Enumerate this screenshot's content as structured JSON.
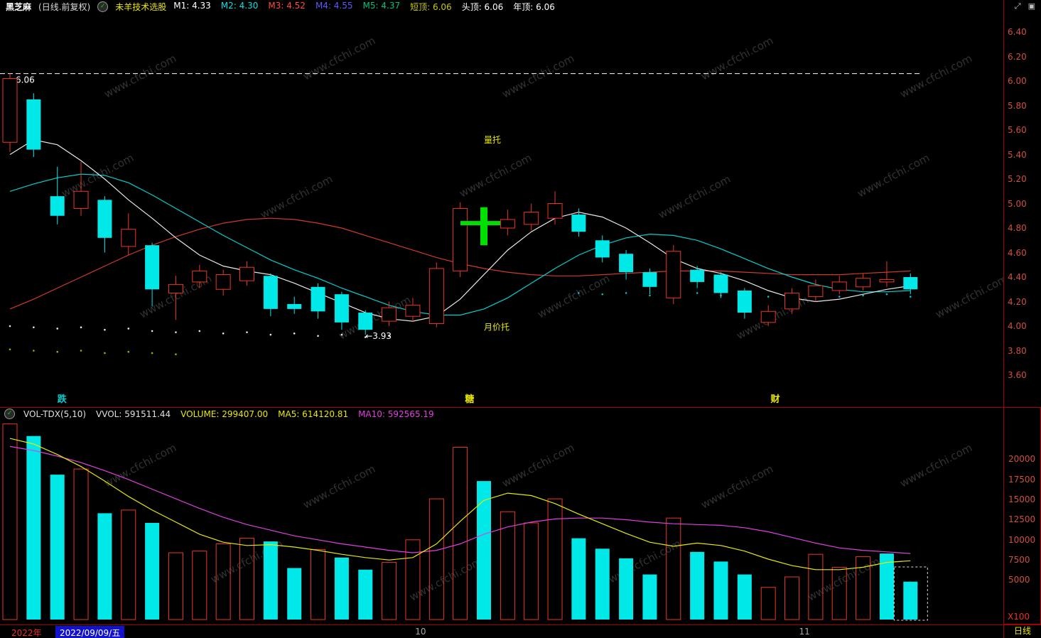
{
  "watermark": "www.cfchi.com",
  "title_bar": {
    "stock_name": "黑芝麻",
    "period_label": "(日线.前复权)",
    "indicator_name": "未羊技术选股",
    "stats": [
      {
        "label": "M1:",
        "value": "4.33",
        "color": "#ffffff"
      },
      {
        "label": "M2:",
        "value": "4.30",
        "color": "#00e0e0"
      },
      {
        "label": "M3:",
        "value": "4.52",
        "color": "#ff4a3a"
      },
      {
        "label": "M4:",
        "value": "4.55",
        "color": "#5a5aff"
      },
      {
        "label": "M5:",
        "value": "4.37",
        "color": "#00c080"
      },
      {
        "label": "短顶:",
        "value": "6.06",
        "color": "#c8c800"
      },
      {
        "label": "头顶:",
        "value": "6.06",
        "color": "#ffffff"
      },
      {
        "label": "年顶:",
        "value": "6.06",
        "color": "#ffffff"
      }
    ]
  },
  "window_icons": {
    "expand": "⤢",
    "restore": "▣"
  },
  "volume_header": {
    "items": [
      {
        "text": "VOL-TDX(5,10)",
        "color": "#e0e0e0"
      },
      {
        "text": "VVOL: 591511.44",
        "color": "#e0e0e0"
      },
      {
        "text": "VOLUME: 299407.00",
        "color": "#e8e800"
      },
      {
        "text": "MA5: 614120.81",
        "color": "#e8e800"
      },
      {
        "text": "MA10: 592565.19",
        "color": "#e040e0"
      }
    ]
  },
  "colors": {
    "up": "#ee3524",
    "down": "#00e8e8",
    "signal": "#00e000",
    "ma_fast": "#e8e8e8",
    "ma_mid": "#00d0d0",
    "ma_slow": "#d03a2a",
    "vol_ma5": "#e8e800",
    "vol_ma10": "#e040e0",
    "axis_label": "#cf5040",
    "border": "#a40000"
  },
  "chart_data": {
    "type": "candlestick+volume",
    "main": {
      "axis_ticks": [
        "6.40",
        "6.20",
        "6.00",
        "5.80",
        "5.60",
        "5.40",
        "5.20",
        "5.00",
        "4.80",
        "4.60",
        "4.40",
        "4.20",
        "4.00",
        "3.80",
        "3.60"
      ],
      "resistance_line": {
        "price": 6.06,
        "label": "6.06"
      },
      "annotations": [
        {
          "text": "量托",
          "x": 20.0,
          "p": 5.52,
          "color": "#e8e800"
        },
        {
          "text": "月价托",
          "x": 20.0,
          "p": 3.99,
          "color": "#e8e800"
        },
        {
          "text": "←3.93",
          "x": 15.0,
          "p": 3.92,
          "color": "#ffffff"
        }
      ],
      "signal_row": [
        {
          "text": "跌",
          "x": 2.0,
          "color": "#00d0d0"
        },
        {
          "text": "糖",
          "x": 19.2,
          "color": "#e8e800"
        },
        {
          "text": "财",
          "x": 32.1,
          "color": "#e8e800"
        }
      ],
      "candles": [
        {
          "o": 5.5,
          "h": 6.06,
          "l": 5.42,
          "c": 6.02,
          "k": "red"
        },
        {
          "o": 5.85,
          "h": 5.9,
          "l": 5.38,
          "c": 5.44,
          "k": "cyan"
        },
        {
          "o": 5.06,
          "h": 5.3,
          "l": 4.83,
          "c": 4.9,
          "k": "cyan"
        },
        {
          "o": 4.96,
          "h": 5.34,
          "l": 4.9,
          "c": 5.1,
          "k": "red"
        },
        {
          "o": 5.03,
          "h": 5.06,
          "l": 4.6,
          "c": 4.72,
          "k": "cyan"
        },
        {
          "o": 4.65,
          "h": 4.92,
          "l": 4.58,
          "c": 4.79,
          "k": "red"
        },
        {
          "o": 4.66,
          "h": 4.68,
          "l": 4.16,
          "c": 4.3,
          "k": "cyan"
        },
        {
          "o": 4.27,
          "h": 4.41,
          "l": 4.05,
          "c": 4.34,
          "k": "red"
        },
        {
          "o": 4.36,
          "h": 4.5,
          "l": 4.31,
          "c": 4.45,
          "k": "red"
        },
        {
          "o": 4.3,
          "h": 4.46,
          "l": 4.25,
          "c": 4.42,
          "k": "red"
        },
        {
          "o": 4.37,
          "h": 4.53,
          "l": 4.33,
          "c": 4.48,
          "k": "red"
        },
        {
          "o": 4.41,
          "h": 4.43,
          "l": 4.08,
          "c": 4.14,
          "k": "cyan"
        },
        {
          "o": 4.18,
          "h": 4.24,
          "l": 4.1,
          "c": 4.14,
          "k": "cyan"
        },
        {
          "o": 4.32,
          "h": 4.35,
          "l": 4.06,
          "c": 4.12,
          "k": "cyan"
        },
        {
          "o": 4.26,
          "h": 4.28,
          "l": 3.97,
          "c": 4.03,
          "k": "cyan"
        },
        {
          "o": 4.11,
          "h": 4.13,
          "l": 3.93,
          "c": 3.97,
          "k": "cyan"
        },
        {
          "o": 4.04,
          "h": 4.2,
          "l": 4.0,
          "c": 4.15,
          "k": "red"
        },
        {
          "o": 4.08,
          "h": 4.23,
          "l": 4.04,
          "c": 4.17,
          "k": "red"
        },
        {
          "o": 4.02,
          "h": 4.52,
          "l": 3.99,
          "c": 4.47,
          "k": "red"
        },
        {
          "o": 4.45,
          "h": 5.01,
          "l": 4.4,
          "c": 4.96,
          "k": "red"
        },
        {
          "o": 4.78,
          "h": 4.97,
          "l": 4.66,
          "c": 4.9,
          "k": "green"
        },
        {
          "o": 4.8,
          "h": 4.95,
          "l": 4.74,
          "c": 4.87,
          "k": "red"
        },
        {
          "o": 4.83,
          "h": 5.0,
          "l": 4.78,
          "c": 4.93,
          "k": "red"
        },
        {
          "o": 4.88,
          "h": 5.1,
          "l": 4.83,
          "c": 5.0,
          "k": "red"
        },
        {
          "o": 4.91,
          "h": 4.96,
          "l": 4.73,
          "c": 4.77,
          "k": "cyan"
        },
        {
          "o": 4.7,
          "h": 4.74,
          "l": 4.52,
          "c": 4.56,
          "k": "cyan"
        },
        {
          "o": 4.59,
          "h": 4.62,
          "l": 4.38,
          "c": 4.44,
          "k": "cyan"
        },
        {
          "o": 4.44,
          "h": 4.47,
          "l": 4.26,
          "c": 4.32,
          "k": "cyan"
        },
        {
          "o": 4.23,
          "h": 4.66,
          "l": 4.18,
          "c": 4.61,
          "k": "red"
        },
        {
          "o": 4.46,
          "h": 4.49,
          "l": 4.31,
          "c": 4.36,
          "k": "cyan"
        },
        {
          "o": 4.42,
          "h": 4.44,
          "l": 4.23,
          "c": 4.27,
          "k": "cyan"
        },
        {
          "o": 4.29,
          "h": 4.31,
          "l": 4.06,
          "c": 4.11,
          "k": "cyan"
        },
        {
          "o": 4.03,
          "h": 4.17,
          "l": 4.0,
          "c": 4.12,
          "k": "red"
        },
        {
          "o": 4.14,
          "h": 4.31,
          "l": 4.1,
          "c": 4.27,
          "k": "red"
        },
        {
          "o": 4.24,
          "h": 4.38,
          "l": 4.2,
          "c": 4.33,
          "k": "red"
        },
        {
          "o": 4.29,
          "h": 4.41,
          "l": 4.26,
          "c": 4.36,
          "k": "red"
        },
        {
          "o": 4.32,
          "h": 4.43,
          "l": 4.29,
          "c": 4.39,
          "k": "red"
        },
        {
          "o": 4.36,
          "h": 4.53,
          "l": 4.32,
          "c": 4.38,
          "k": "red"
        },
        {
          "o": 4.4,
          "h": 4.43,
          "l": 4.26,
          "c": 4.3,
          "k": "cyan"
        }
      ],
      "ma_white": [
        5.4,
        5.52,
        5.48,
        5.35,
        5.2,
        5.03,
        4.88,
        4.72,
        4.58,
        4.49,
        4.45,
        4.42,
        4.35,
        4.27,
        4.19,
        4.11,
        4.06,
        4.04,
        4.08,
        4.22,
        4.42,
        4.62,
        4.77,
        4.88,
        4.93,
        4.89,
        4.8,
        4.68,
        4.55,
        4.47,
        4.43,
        4.37,
        4.29,
        4.23,
        4.2,
        4.22,
        4.26,
        4.3,
        4.33
      ],
      "ma_cyan": [
        5.1,
        5.16,
        5.21,
        5.24,
        5.23,
        5.17,
        5.07,
        4.96,
        4.85,
        4.74,
        4.64,
        4.54,
        4.46,
        4.39,
        4.31,
        4.24,
        4.17,
        4.12,
        4.09,
        4.09,
        4.14,
        4.23,
        4.35,
        4.47,
        4.58,
        4.66,
        4.72,
        4.75,
        4.74,
        4.7,
        4.63,
        4.55,
        4.47,
        4.4,
        4.34,
        4.3,
        4.28,
        4.28,
        4.29
      ],
      "ma_red": [
        4.14,
        4.22,
        4.31,
        4.4,
        4.49,
        4.58,
        4.66,
        4.73,
        4.79,
        4.84,
        4.87,
        4.88,
        4.87,
        4.84,
        4.8,
        4.74,
        4.68,
        4.62,
        4.56,
        4.51,
        4.47,
        4.44,
        4.42,
        4.41,
        4.41,
        4.42,
        4.43,
        4.44,
        4.45,
        4.45,
        4.45,
        4.44,
        4.43,
        4.42,
        4.42,
        4.42,
        4.43,
        4.44,
        4.45
      ],
      "dots": [
        {
          "color": "#e8e8e8",
          "points": [
            [
              0,
              4.0
            ],
            [
              1,
              3.99
            ],
            [
              2,
              3.98
            ],
            [
              3,
              3.99
            ],
            [
              4,
              3.97
            ],
            [
              5,
              3.98
            ],
            [
              6,
              3.96
            ],
            [
              7,
              3.95
            ],
            [
              8,
              3.96
            ],
            [
              9,
              3.94
            ],
            [
              10,
              3.95
            ],
            [
              11,
              3.93
            ],
            [
              12,
              3.94
            ],
            [
              13,
              3.92
            ],
            [
              14,
              3.93
            ],
            [
              15,
              3.91
            ],
            [
              16,
              3.92
            ]
          ]
        },
        {
          "color": "#80c000",
          "points": [
            [
              0,
              3.81
            ],
            [
              1,
              3.8
            ],
            [
              2,
              3.79
            ],
            [
              3,
              3.8
            ],
            [
              4,
              3.78
            ],
            [
              5,
              3.79
            ],
            [
              6,
              3.78
            ],
            [
              7,
              3.77
            ]
          ]
        },
        {
          "color": "#00c0c0",
          "points": [
            [
              24,
              4.27
            ],
            [
              25,
              4.26
            ],
            [
              26,
              4.27
            ],
            [
              27,
              4.25
            ],
            [
              28,
              4.26
            ],
            [
              29,
              4.27
            ],
            [
              30,
              4.25
            ],
            [
              31,
              4.26
            ],
            [
              32,
              4.24
            ],
            [
              33,
              4.25
            ],
            [
              34,
              4.26
            ],
            [
              35,
              4.24
            ],
            [
              36,
              4.25
            ],
            [
              37,
              4.26
            ],
            [
              38,
              4.24
            ]
          ]
        }
      ]
    },
    "volume": {
      "axis_ticks": [
        "20000",
        "17500",
        "15000",
        "12500",
        "10000",
        "7500",
        "5000"
      ],
      "unit_label": "X100",
      "selection_box_index": 38,
      "bars": [
        {
          "v": 24300,
          "k": "red"
        },
        {
          "v": 22800,
          "k": "cyan"
        },
        {
          "v": 18000,
          "k": "cyan"
        },
        {
          "v": 18700,
          "k": "red"
        },
        {
          "v": 13200,
          "k": "cyan"
        },
        {
          "v": 13600,
          "k": "red"
        },
        {
          "v": 12000,
          "k": "cyan"
        },
        {
          "v": 8300,
          "k": "red"
        },
        {
          "v": 8500,
          "k": "red"
        },
        {
          "v": 9400,
          "k": "red"
        },
        {
          "v": 10100,
          "k": "red"
        },
        {
          "v": 9700,
          "k": "cyan"
        },
        {
          "v": 6400,
          "k": "cyan"
        },
        {
          "v": 8700,
          "k": "red"
        },
        {
          "v": 7700,
          "k": "cyan"
        },
        {
          "v": 6200,
          "k": "cyan"
        },
        {
          "v": 7100,
          "k": "red"
        },
        {
          "v": 9900,
          "k": "red"
        },
        {
          "v": 15000,
          "k": "red"
        },
        {
          "v": 21400,
          "k": "red"
        },
        {
          "v": 17200,
          "k": "cyan"
        },
        {
          "v": 13400,
          "k": "red"
        },
        {
          "v": 12000,
          "k": "red"
        },
        {
          "v": 15000,
          "k": "red"
        },
        {
          "v": 10100,
          "k": "cyan"
        },
        {
          "v": 8800,
          "k": "cyan"
        },
        {
          "v": 7600,
          "k": "cyan"
        },
        {
          "v": 5600,
          "k": "cyan"
        },
        {
          "v": 12600,
          "k": "red"
        },
        {
          "v": 8400,
          "k": "cyan"
        },
        {
          "v": 7200,
          "k": "cyan"
        },
        {
          "v": 5600,
          "k": "cyan"
        },
        {
          "v": 4000,
          "k": "red"
        },
        {
          "v": 5300,
          "k": "red"
        },
        {
          "v": 8100,
          "k": "red"
        },
        {
          "v": 6500,
          "k": "red"
        },
        {
          "v": 7800,
          "k": "red"
        },
        {
          "v": 8200,
          "k": "cyan"
        },
        {
          "v": 4700,
          "k": "cyan"
        }
      ],
      "ma5_yellow": [
        22500,
        21800,
        20500,
        19000,
        17200,
        15300,
        13600,
        12100,
        10600,
        9600,
        9200,
        9300,
        9000,
        8600,
        8100,
        7700,
        7400,
        7700,
        9400,
        12200,
        14800,
        15700,
        15400,
        14400,
        13100,
        11900,
        10700,
        9600,
        9100,
        9500,
        9200,
        8500,
        7500,
        6700,
        6200,
        6200,
        6500,
        7100,
        7300
      ],
      "ma10_magenta": [
        21500,
        21000,
        20300,
        19500,
        18500,
        17400,
        16200,
        15000,
        13800,
        12700,
        11800,
        11100,
        10400,
        9900,
        9400,
        9000,
        8600,
        8300,
        8600,
        9400,
        10600,
        11500,
        12100,
        12500,
        12600,
        12600,
        12400,
        12100,
        11900,
        11800,
        11700,
        11400,
        10900,
        10200,
        9500,
        8900,
        8600,
        8400,
        8200
      ]
    },
    "x_axis": {
      "year": "2022年",
      "selected_date": "2022/09/09/五",
      "month_ticks": [
        {
          "label": "10",
          "x": 17.1
        },
        {
          "label": "11",
          "x": 33.3
        }
      ],
      "period": "日线"
    }
  }
}
